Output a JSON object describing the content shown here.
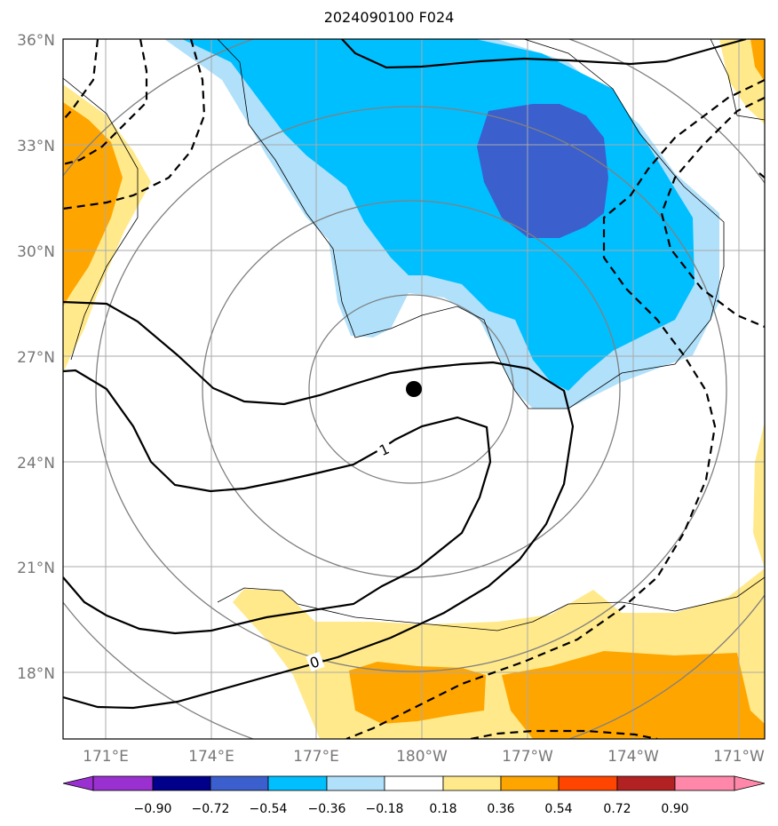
{
  "title": "2024090100 F024",
  "lat_labels": [
    "36°N",
    "33°N",
    "30°N",
    "27°N",
    "24°N",
    "21°N",
    "18°N"
  ],
  "lon_labels": [
    "171°E",
    "174°E",
    "177°E",
    "180°W",
    "177°W",
    "174°W",
    "171°W"
  ],
  "colorbar": {
    "ticks": [
      "−0.90",
      "−0.72",
      "−0.54",
      "−0.36",
      "−0.18",
      "0.18",
      "0.36",
      "0.54",
      "0.72",
      "0.90"
    ],
    "colors": [
      "#9b30d0",
      "#00008b",
      "#3b5fcd",
      "#00bfff",
      "#b0e0fa",
      "#ffffff",
      "#ffe98a",
      "#ffa500",
      "#ff4500",
      "#b22222",
      "#ff88aa"
    ]
  },
  "contour_labels": [
    "1",
    "0"
  ],
  "storm_center": "storm-center-dot",
  "colors": {
    "light_blue": "#b0e0fa",
    "blue": "#00bfff",
    "dark_blue": "#3b5fcd",
    "light_yellow": "#ffe98a",
    "orange": "#ffa500",
    "grid": "#aaaaaa"
  }
}
